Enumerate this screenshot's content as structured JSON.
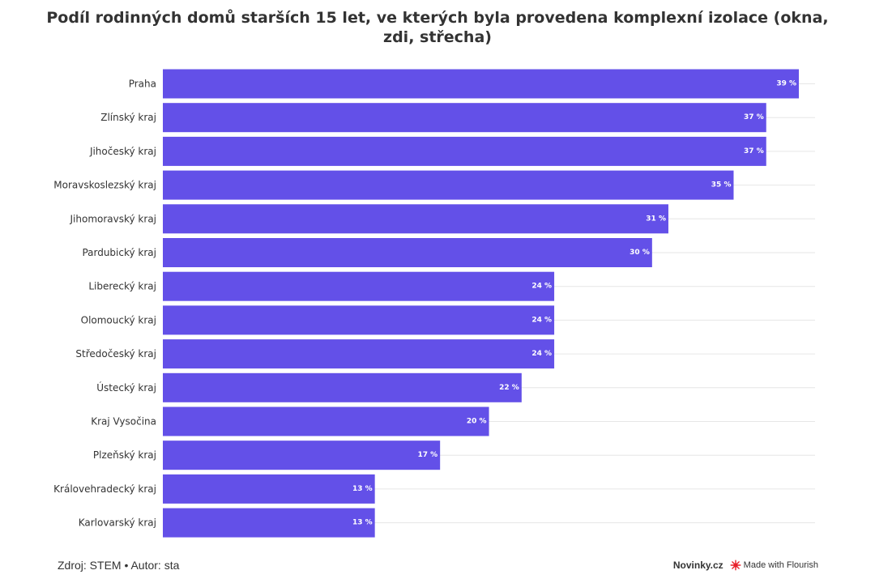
{
  "header": {
    "title": "Podíl rodinných domů starších 15 let, ve kterých byla provedena komplexní izolace (okna, zdi, střecha)"
  },
  "footer": {
    "source": "Zdroj: STEM • Autor: sta",
    "brand": "Novinky.cz",
    "made_with": "Made with Flourish"
  },
  "colors": {
    "bar": "#6350e8",
    "grid": "#e6e6e6"
  },
  "chart_data": {
    "type": "bar",
    "orientation": "horizontal",
    "title": "Podíl rodinných domů starších 15 let, ve kterých byla provedena komplexní izolace (okna, zdi, střecha)",
    "categories": [
      "Praha",
      "Zlínský kraj",
      "Jihočeský kraj",
      "Moravskoslezský kraj",
      "Jihomoravský kraj",
      "Pardubický kraj",
      "Liberecký kraj",
      "Olomoucký kraj",
      "Středočeský kraj",
      "Ústecký kraj",
      "Kraj Vysočina",
      "Plzeňský kraj",
      "Královehradecký kraj",
      "Karlovarský kraj"
    ],
    "values": [
      39,
      37,
      37,
      35,
      31,
      30,
      24,
      24,
      24,
      22,
      20,
      17,
      13,
      13
    ],
    "value_labels": [
      "39 %",
      "37 %",
      "37 %",
      "35 %",
      "31 %",
      "30 %",
      "24 %",
      "24 %",
      "24 %",
      "22 %",
      "20 %",
      "17 %",
      "13 %",
      "13 %"
    ],
    "xlim": [
      0,
      40
    ],
    "grid": true
  }
}
